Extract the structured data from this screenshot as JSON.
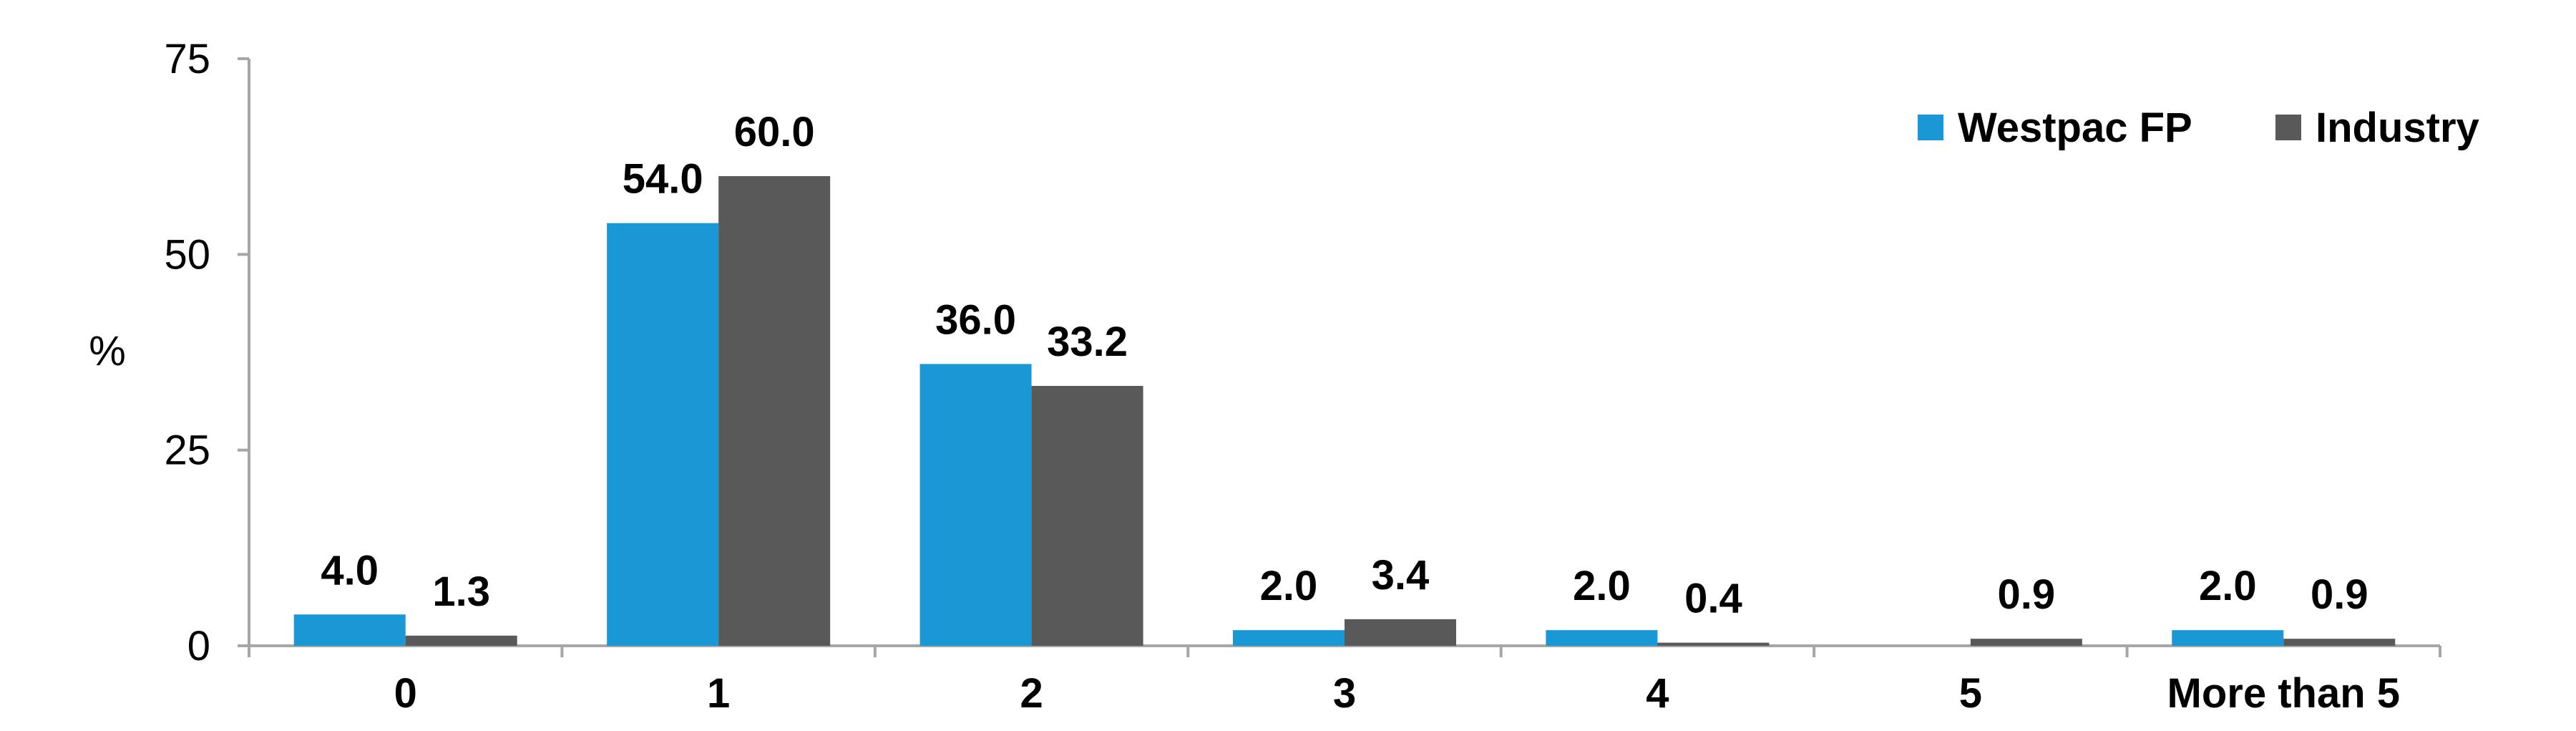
{
  "chart_data": {
    "type": "bar",
    "ylabel": "%",
    "xlabel": "",
    "ylim": [
      0,
      75
    ],
    "yticks": [
      0,
      25,
      50,
      75
    ],
    "grid": false,
    "legend_position": "top-right",
    "categories": [
      "0",
      "1",
      "2",
      "3",
      "4",
      "5",
      "More than 5"
    ],
    "series": [
      {
        "name": "Westpac FP",
        "color": "#1a98d5",
        "values": [
          4.0,
          54.0,
          36.0,
          2.0,
          2.0,
          null,
          2.0
        ],
        "labels": [
          "4.0",
          "54.0",
          "36.0",
          "2.0",
          "2.0",
          "",
          "2.0"
        ]
      },
      {
        "name": "Industry",
        "color": "#595959",
        "values": [
          1.3,
          60.0,
          33.2,
          3.4,
          0.4,
          0.9,
          0.9
        ],
        "labels": [
          "1.3",
          "60.0",
          "33.2",
          "3.4",
          "0.4",
          "0.9",
          "0.9"
        ]
      }
    ]
  }
}
